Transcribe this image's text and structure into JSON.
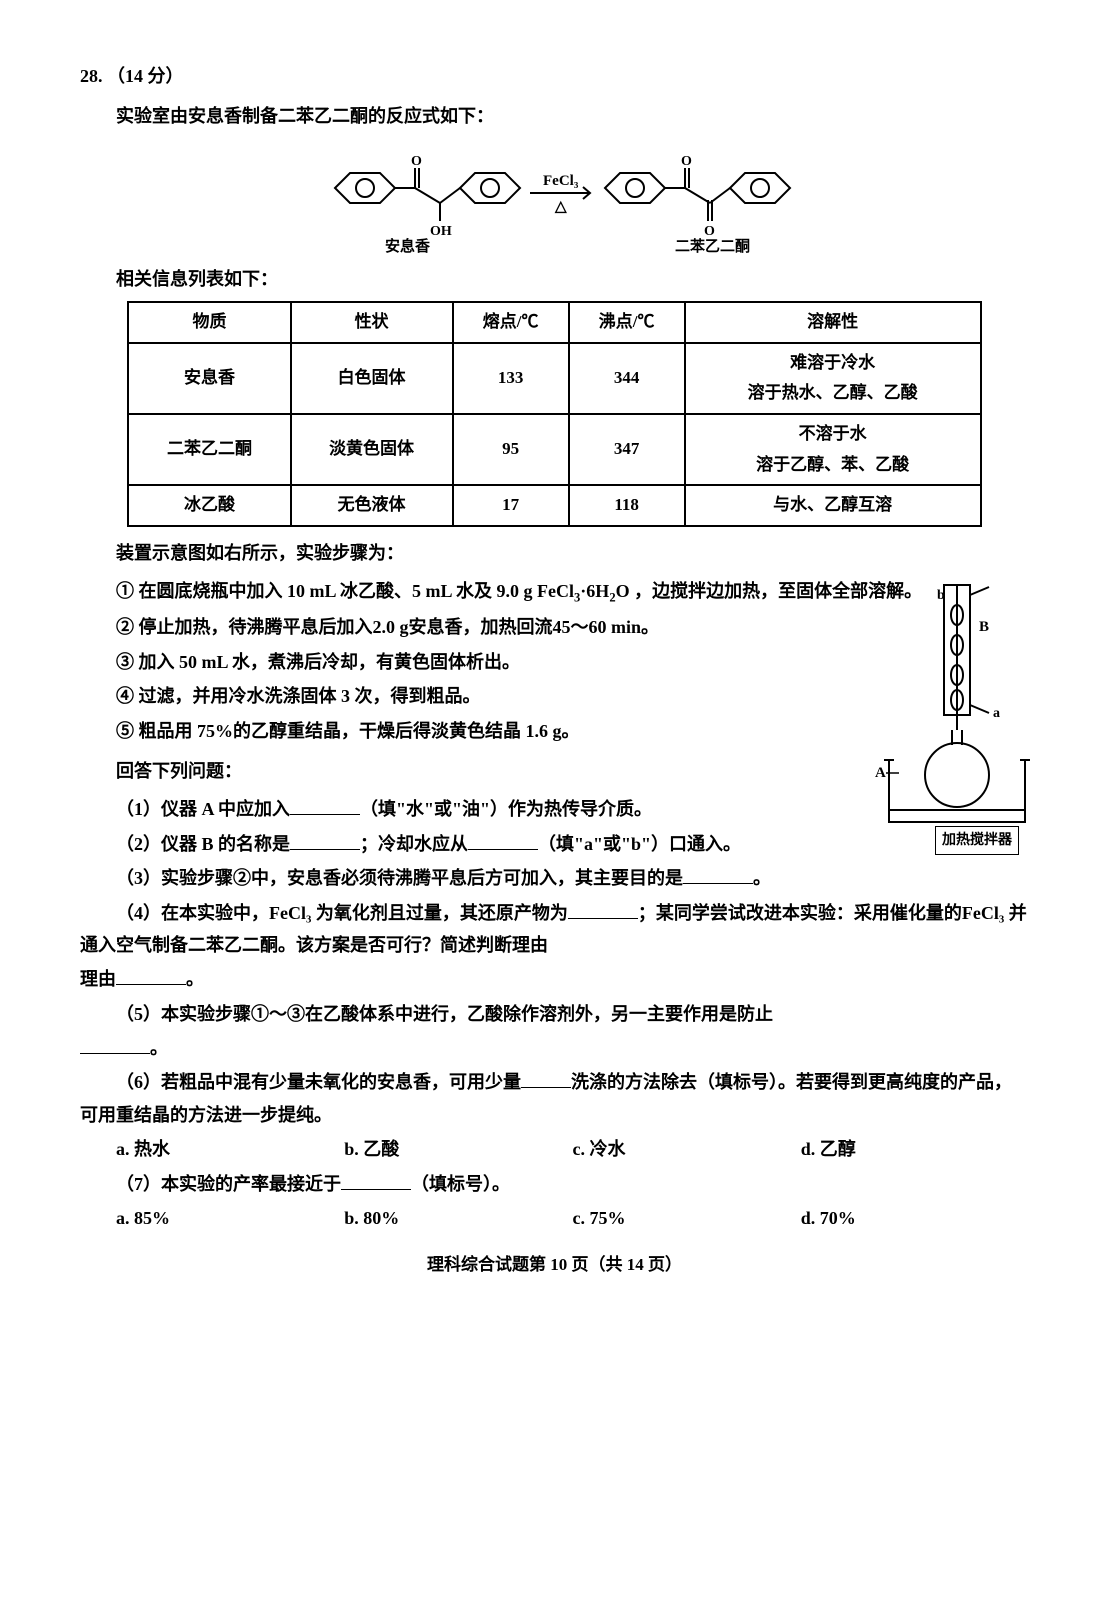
{
  "question": {
    "number": "28.",
    "points": "（14 分）",
    "intro": "实验室由安息香制备二苯乙二酮的反应式如下：",
    "reaction": {
      "reactant_label": "安息香",
      "product_label": "二苯乙二酮",
      "reagent_top": "FeCl₃",
      "reagent_bottom": "△"
    },
    "table_caption": "相关信息列表如下：",
    "table": {
      "columns": [
        "物质",
        "性状",
        "熔点/℃",
        "沸点/℃",
        "溶解性"
      ],
      "rows": [
        [
          "安息香",
          "白色固体",
          "133",
          "344",
          "难溶于冷水<br>溶于热水、乙醇、乙酸"
        ],
        [
          "二苯乙二酮",
          "淡黄色固体",
          "95",
          "347",
          "不溶于水<br>溶于乙醇、苯、乙酸"
        ],
        [
          "冰乙酸",
          "无色液体",
          "17",
          "118",
          "与水、乙醇互溶"
        ]
      ],
      "border_color": "#000000",
      "text_color": "#000000",
      "bg_color": "#ffffff"
    },
    "steps_intro": "装置示意图如右所示，实验步骤为：",
    "apparatus_caption": "加热搅拌器",
    "apparatus_labels": {
      "A": "A",
      "B": "B",
      "a": "a",
      "b": "b"
    },
    "steps": [
      "① 在圆底烧瓶中加入 10 mL 冰乙酸、5 mL 水及 9.0 g FeCl₃·6H₂O ，边搅拌边加热，至固体全部溶解。",
      "② 停止加热，待沸腾平息后加入2.0 g安息香，加热回流45～60 min。",
      "③ 加入 50 mL 水，煮沸后冷却，有黄色固体析出。",
      "④ 过滤，并用冷水洗涤固体 3 次，得到粗品。",
      "⑤ 粗品用 75%的乙醇重结晶，干燥后得淡黄色结晶 1.6 g。"
    ],
    "answer_prompt": "回答下列问题：",
    "questions": {
      "q1_pre": "（1）仪器 A 中应加入",
      "q1_post": "（填\"水\"或\"油\"）作为热传导介质。",
      "q2_pre": "（2）仪器 B 的名称是",
      "q2_mid": "；冷却水应从",
      "q2_post": "（填\"a\"或\"b\"）口通入。",
      "q3_pre": "（3）实验步骤②中，安息香必须待沸腾平息后方可加入，其主要目的是",
      "q3_post": "。",
      "q4_pre": "（4）在本实验中，FeCl₃ 为氧化剂且过量，其还原产物为",
      "q4_mid": "；某同学尝试改进本实验：采用催化量的FeCl₃ 并通入空气制备二苯乙二酮。该方案是否可行？简述判断理由",
      "q4_post": "。",
      "q5_pre": "（5）本实验步骤①～③在乙酸体系中进行，乙酸除作溶剂外，另一主要作用是防止",
      "q5_post": "。",
      "q6_pre": "（6）若粗品中混有少量未氧化的安息香，可用少量",
      "q6_post": "洗涤的方法除去（填标号）。若要得到更高纯度的产品，可用重结晶的方法进一步提纯。",
      "q6_opts": {
        "a": "a. 热水",
        "b": "b. 乙酸",
        "c": "c. 冷水",
        "d": "d. 乙醇"
      },
      "q7_pre": "（7）本实验的产率最接近于",
      "q7_post": "（填标号）。",
      "q7_opts": {
        "a": "a. 85%",
        "b": "b. 80%",
        "c": "c. 75%",
        "d": "d. 70%"
      }
    },
    "footer": "理科综合试题第 10 页（共 14 页）"
  },
  "colors": {
    "text": "#000000",
    "bg": "#ffffff",
    "line": "#000000"
  }
}
